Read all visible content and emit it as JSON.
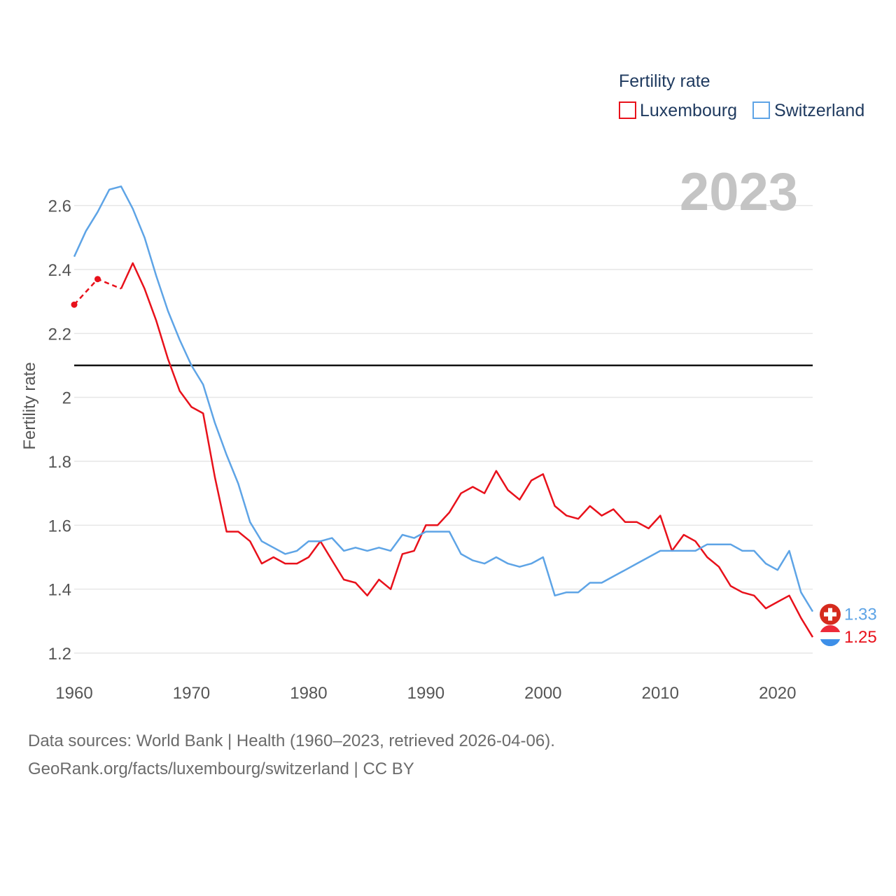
{
  "chart_data": {
    "type": "line",
    "title": "Fertility rate",
    "ylabel": "Fertility rate",
    "xlabel": "",
    "year_label": "2023",
    "xlim": [
      1960,
      2023
    ],
    "ylim": [
      1.2,
      2.7
    ],
    "x_ticks": [
      1960,
      1970,
      1980,
      1990,
      2000,
      2010,
      2020
    ],
    "y_ticks": [
      1.2,
      1.4,
      1.6,
      1.8,
      2,
      2.2,
      2.4,
      2.6
    ],
    "reference_line": 2.1,
    "series": [
      {
        "name": "Luxembourg",
        "color": "#e8111b",
        "end_label": "1.25",
        "flag_icon": "luxembourg-flag-icon",
        "estimated_segment": {
          "x": [
            1960,
            1962,
            1964
          ],
          "values": [
            2.29,
            2.37,
            2.34
          ]
        },
        "x": [
          1964,
          1965,
          1966,
          1967,
          1968,
          1969,
          1970,
          1971,
          1972,
          1973,
          1974,
          1975,
          1976,
          1977,
          1978,
          1979,
          1980,
          1981,
          1982,
          1983,
          1984,
          1985,
          1986,
          1987,
          1988,
          1989,
          1990,
          1991,
          1992,
          1993,
          1994,
          1995,
          1996,
          1997,
          1998,
          1999,
          2000,
          2001,
          2002,
          2003,
          2004,
          2005,
          2006,
          2007,
          2008,
          2009,
          2010,
          2011,
          2012,
          2013,
          2014,
          2015,
          2016,
          2017,
          2018,
          2019,
          2020,
          2021,
          2022,
          2023
        ],
        "values": [
          2.34,
          2.42,
          2.34,
          2.24,
          2.12,
          2.02,
          1.97,
          1.95,
          1.75,
          1.58,
          1.58,
          1.55,
          1.48,
          1.5,
          1.48,
          1.48,
          1.5,
          1.55,
          1.49,
          1.43,
          1.42,
          1.38,
          1.43,
          1.4,
          1.51,
          1.52,
          1.6,
          1.6,
          1.64,
          1.7,
          1.72,
          1.7,
          1.77,
          1.71,
          1.68,
          1.74,
          1.76,
          1.66,
          1.63,
          1.62,
          1.66,
          1.63,
          1.65,
          1.61,
          1.61,
          1.59,
          1.63,
          1.52,
          1.57,
          1.55,
          1.5,
          1.47,
          1.41,
          1.39,
          1.38,
          1.34,
          1.36,
          1.38,
          1.31,
          1.25
        ]
      },
      {
        "name": "Switzerland",
        "color": "#5ea4e6",
        "end_label": "1.33",
        "flag_icon": "switzerland-flag-icon",
        "x": [
          1960,
          1961,
          1962,
          1963,
          1964,
          1965,
          1966,
          1967,
          1968,
          1969,
          1970,
          1971,
          1972,
          1973,
          1974,
          1975,
          1976,
          1977,
          1978,
          1979,
          1980,
          1981,
          1982,
          1983,
          1984,
          1985,
          1986,
          1987,
          1988,
          1989,
          1990,
          1991,
          1992,
          1993,
          1994,
          1995,
          1996,
          1997,
          1998,
          1999,
          2000,
          2001,
          2002,
          2003,
          2004,
          2005,
          2006,
          2007,
          2008,
          2009,
          2010,
          2011,
          2012,
          2013,
          2014,
          2015,
          2016,
          2017,
          2018,
          2019,
          2020,
          2021,
          2022,
          2023
        ],
        "values": [
          2.44,
          2.52,
          2.58,
          2.65,
          2.66,
          2.59,
          2.5,
          2.38,
          2.27,
          2.18,
          2.1,
          2.04,
          1.92,
          1.82,
          1.73,
          1.61,
          1.55,
          1.53,
          1.51,
          1.52,
          1.55,
          1.55,
          1.56,
          1.52,
          1.53,
          1.52,
          1.53,
          1.52,
          1.57,
          1.56,
          1.58,
          1.58,
          1.58,
          1.51,
          1.49,
          1.48,
          1.5,
          1.48,
          1.47,
          1.48,
          1.5,
          1.38,
          1.39,
          1.39,
          1.42,
          1.42,
          1.44,
          1.46,
          1.48,
          1.5,
          1.52,
          1.52,
          1.52,
          1.52,
          1.54,
          1.54,
          1.54,
          1.52,
          1.52,
          1.48,
          1.46,
          1.52,
          1.39,
          1.33
        ]
      }
    ],
    "legend_position": "top-right"
  },
  "source": {
    "line1": "Data sources: World Bank | Health (1960–2023, retrieved 2026-04-06).",
    "line2": "GeoRank.org/facts/luxembourg/switzerland | CC BY"
  }
}
